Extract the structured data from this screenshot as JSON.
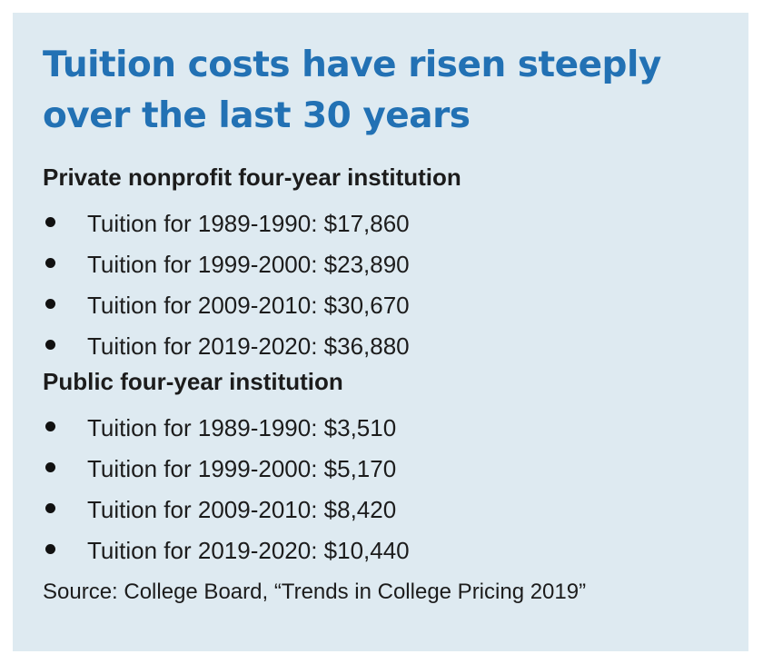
{
  "title": "Tuition costs have risen steeply over the last 30 years",
  "sections": [
    {
      "heading": "Private nonprofit four-year institution",
      "items": [
        "Tuition for 1989-1990: $17,860",
        "Tuition for 1999-2000: $23,890",
        "Tuition for 2009-2010: $30,670",
        "Tuition for 2019-2020: $36,880"
      ]
    },
    {
      "heading": "Public four-year institution",
      "items": [
        "Tuition for 1989-1990: $3,510",
        "Tuition for 1999-2000: $5,170",
        "Tuition for 2009-2010: $8,420",
        "Tuition for 2019-2020: $10,440"
      ]
    }
  ],
  "source": "Source: College Board, “Trends in College Pricing 2019”",
  "colors": {
    "background": "#deeaf1",
    "title": "#2271b4",
    "text": "#1c1c1c"
  }
}
